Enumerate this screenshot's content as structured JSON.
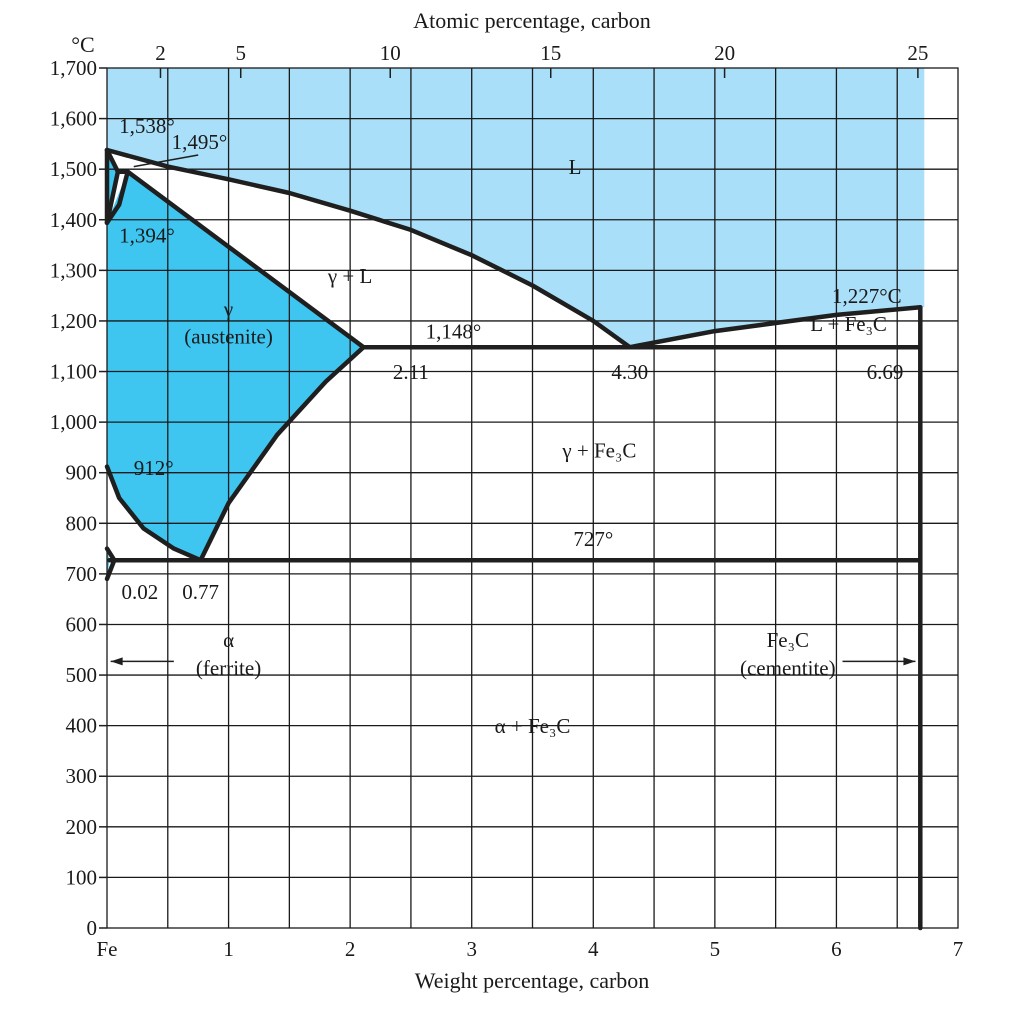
{
  "chart_data": {
    "type": "phase-diagram",
    "title": "",
    "x_label": "Weight percentage, carbon",
    "x2_label": "Atomic percentage, carbon",
    "y_unit": "°C",
    "y_range": [
      0,
      1700
    ],
    "x_range": [
      0,
      7
    ],
    "y_ticks": [
      "0",
      "100",
      "200",
      "300",
      "400",
      "500",
      "600",
      "700",
      "800",
      "900",
      "1,000",
      "1,100",
      "1,200",
      "1,300",
      "1,400",
      "1,500",
      "1,600",
      "1,700"
    ],
    "x_ticks": [
      "Fe",
      "1",
      "2",
      "3",
      "4",
      "5",
      "6",
      "7"
    ],
    "x2_ticks": [
      {
        "label": "2",
        "wt": 0.44
      },
      {
        "label": "5",
        "wt": 1.1
      },
      {
        "label": "10",
        "wt": 2.33
      },
      {
        "label": "15",
        "wt": 3.65
      },
      {
        "label": "20",
        "wt": 5.08
      },
      {
        "label": "25",
        "wt": 6.67
      }
    ],
    "boundaries": {
      "liquidus_gamma": [
        [
          0.17,
          1495
        ],
        [
          2.11,
          1148
        ]
      ],
      "liquidus_upper": [
        [
          0,
          1538
        ],
        [
          0.5,
          1505
        ],
        [
          1.0,
          1480
        ],
        [
          1.5,
          1453
        ],
        [
          2.0,
          1418
        ],
        [
          2.5,
          1380
        ],
        [
          3.0,
          1330
        ],
        [
          3.5,
          1270
        ],
        [
          4.0,
          1200
        ],
        [
          4.3,
          1148
        ]
      ],
      "liquidus_fe3c": [
        [
          4.3,
          1148
        ],
        [
          5.0,
          1180
        ],
        [
          6.0,
          1212
        ],
        [
          6.69,
          1227
        ]
      ],
      "solvus_acm": [
        [
          2.11,
          1148
        ],
        [
          1.8,
          1080
        ],
        [
          1.4,
          975
        ],
        [
          1.0,
          840
        ],
        [
          0.77,
          727
        ]
      ],
      "a3_line": [
        [
          0,
          912
        ],
        [
          0.1,
          850
        ],
        [
          0.3,
          790
        ],
        [
          0.55,
          750
        ],
        [
          0.77,
          727
        ]
      ],
      "eutectic": [
        [
          2.11,
          1148
        ],
        [
          6.69,
          1148
        ]
      ],
      "eutectoid": [
        [
          0.02,
          727
        ],
        [
          6.69,
          727
        ]
      ],
      "cementite": [
        [
          6.69,
          0
        ],
        [
          6.69,
          1227
        ]
      ]
    },
    "annotations": [
      {
        "text": "1,538°",
        "wt": 0.1,
        "temp": 1572
      },
      {
        "text": "1,495°",
        "wt": 0.76,
        "temp": 1540
      },
      {
        "text": "L",
        "wt": 3.85,
        "temp": 1490
      },
      {
        "text": "1,394°",
        "wt": 0.1,
        "temp": 1355
      },
      {
        "text": "γ + L",
        "wt": 2.0,
        "temp": 1275
      },
      {
        "text": "1,227°C",
        "wt": 6.25,
        "temp": 1235
      },
      {
        "text": "γ",
        "wt": 1.0,
        "temp": 1210
      },
      {
        "text": "(austenite)",
        "wt": 1.0,
        "temp": 1155
      },
      {
        "text": "1,148°",
        "wt": 2.85,
        "temp": 1165
      },
      {
        "text": "L + Fe₃C",
        "wt": 6.1,
        "temp": 1180
      },
      {
        "text": "2.11",
        "wt": 2.5,
        "temp": 1085
      },
      {
        "text": "4.30",
        "wt": 4.3,
        "temp": 1085
      },
      {
        "text": "6.69",
        "wt": 6.4,
        "temp": 1085
      },
      {
        "text": "γ + Fe₃C",
        "wt": 4.05,
        "temp": 930
      },
      {
        "text": "912°",
        "wt": 0.22,
        "temp": 895
      },
      {
        "text": "727°",
        "wt": 4.0,
        "temp": 755
      },
      {
        "text": "0.02",
        "wt": 0.27,
        "temp": 650
      },
      {
        "text": "0.77",
        "wt": 0.77,
        "temp": 650
      },
      {
        "text": "α",
        "wt": 1.0,
        "temp": 555
      },
      {
        "text": "(ferrite)",
        "wt": 1.0,
        "temp": 500
      },
      {
        "text": "Fe₃C",
        "wt": 5.6,
        "temp": 555
      },
      {
        "text": "(cementite)",
        "wt": 5.6,
        "temp": 500
      },
      {
        "text": "α + Fe₃C",
        "wt": 3.5,
        "temp": 385
      }
    ],
    "colors": {
      "liquid_region": "#a9dff8",
      "solid_solution_region": "#3ec6f1",
      "lines": "#1f1f1f"
    }
  }
}
